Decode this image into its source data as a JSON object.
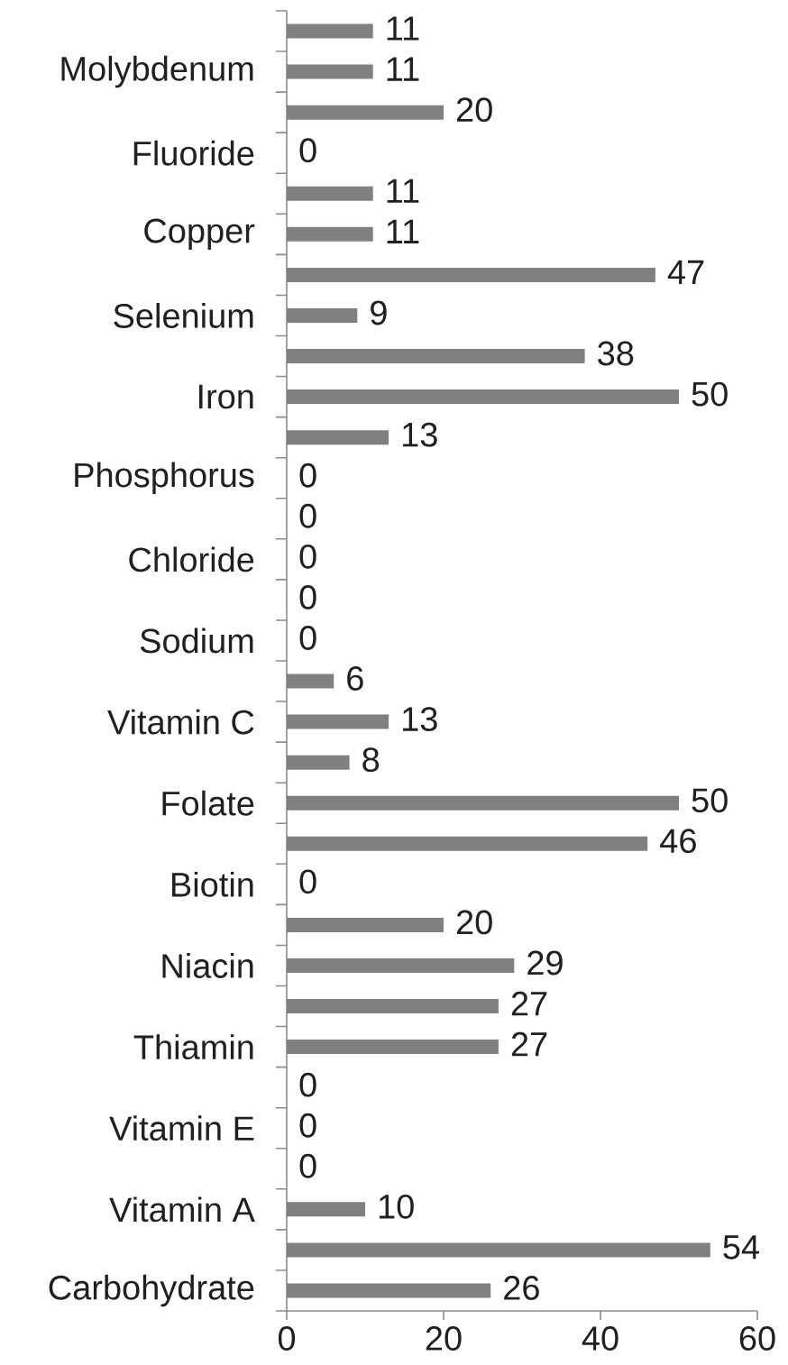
{
  "chart_data": {
    "type": "bar",
    "orientation": "horizontal",
    "categories": [
      null,
      "Molybdenum",
      null,
      "Fluoride",
      null,
      "Copper",
      null,
      "Selenium",
      null,
      "Iron",
      null,
      "Phosphorus",
      null,
      "Chloride",
      null,
      "Sodium",
      null,
      "Vitamin C",
      null,
      "Folate",
      null,
      "Biotin",
      null,
      "Niacin",
      null,
      "Thiamin",
      null,
      "Vitamin E",
      null,
      "Vitamin A",
      null,
      "Carbohydrate"
    ],
    "values": [
      11,
      11,
      20,
      0,
      11,
      11,
      47,
      9,
      38,
      50,
      13,
      0,
      0,
      0,
      0,
      0,
      6,
      13,
      8,
      50,
      46,
      0,
      20,
      29,
      27,
      27,
      0,
      0,
      0,
      10,
      54,
      26
    ],
    "color": "#808080",
    "xlim": [
      0,
      60
    ],
    "xticks": [
      0,
      20,
      40,
      60
    ],
    "data_labels": true
  }
}
